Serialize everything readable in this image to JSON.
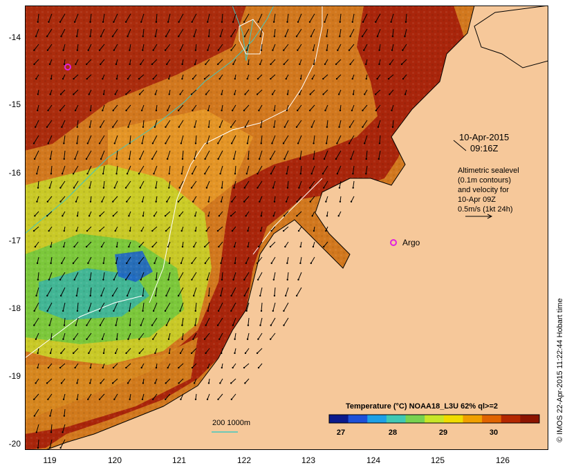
{
  "map": {
    "date_line": "10-Apr-2015",
    "time_line": "09:16Z",
    "annotation_lines": [
      "Altimetric sealevel",
      "(0.1m contours)",
      "and velocity for",
      "10-Apr 09Z",
      "0.5m/s (1kt 24h)"
    ],
    "argo_label": "Argo",
    "depth_label": "200  1000m",
    "credit": "© IMOS 22-Apr-2015 11:22:44 Hobart time",
    "y_ticks": [
      "-14",
      "-15",
      "-16",
      "-17",
      "-18",
      "-19",
      "-20"
    ],
    "x_ticks": [
      "119",
      "120",
      "121",
      "122",
      "123",
      "124",
      "125",
      "126"
    ],
    "colorbar": {
      "title": "Temperature (°C) NOAA18_L3U 62% ql>=2",
      "ticks": [
        "27",
        "28",
        "29",
        "30"
      ],
      "colors": [
        "#0b1a8c",
        "#1e50d8",
        "#1ea0e6",
        "#40c8b4",
        "#78d250",
        "#c8e628",
        "#f0dc00",
        "#f0a000",
        "#e06400",
        "#b42800",
        "#8c1400"
      ]
    },
    "colors": {
      "land": "#f6c89a",
      "warm": "#a51e0a",
      "mid": "#d2781e",
      "cool": "#8cc83c",
      "contour": "#ffffff",
      "isobath": "#40c8c0",
      "argo": "#e020e0"
    }
  }
}
